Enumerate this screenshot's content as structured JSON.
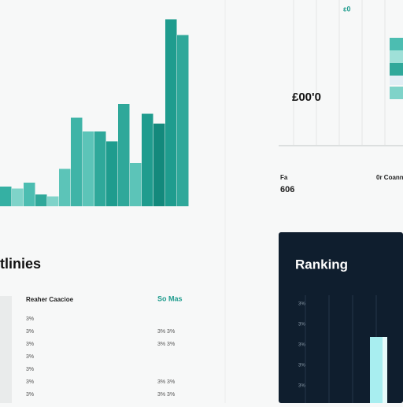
{
  "chart_data": {
    "type": "bar",
    "values": [
      10,
      9,
      12,
      6,
      5,
      19,
      45,
      38,
      38,
      33,
      52,
      22,
      47,
      42,
      95,
      87
    ],
    "colors": [
      "#35b0a3",
      "#7fd3c9",
      "#4cbdb1",
      "#2fa89a",
      "#7fd3c9",
      "#5cc4b8",
      "#3fb4a7",
      "#5cc4b8",
      "#2fa89a",
      "#1f9c8e",
      "#2fa89a",
      "#5cc4b8",
      "#1f9c8e",
      "#13897c",
      "#1f9c8e",
      "#2fa89a"
    ],
    "ylim": [
      0,
      100
    ]
  },
  "stat_panel": {
    "corner": "ɛ0",
    "value": "£00'0",
    "label_a": "Fa",
    "value_a": "606",
    "label_b": "0r Coann"
  },
  "list_panel": {
    "title": "tlinies",
    "header": "Reaher Caacioe",
    "header_right": "So Mas",
    "rows": [
      [
        "3%",
        ""
      ],
      [
        "3%",
        "3% 3%"
      ],
      [
        "3%",
        "3% 3%"
      ],
      [
        "3%",
        ""
      ],
      [
        "3%",
        ""
      ],
      [
        "3%",
        "3% 3%"
      ],
      [
        "3%",
        "3% 3%"
      ]
    ]
  },
  "ranking_panel": {
    "title": "Ranking",
    "ticks": [
      "3%",
      "3%",
      "3%",
      "3%",
      "3%"
    ]
  }
}
